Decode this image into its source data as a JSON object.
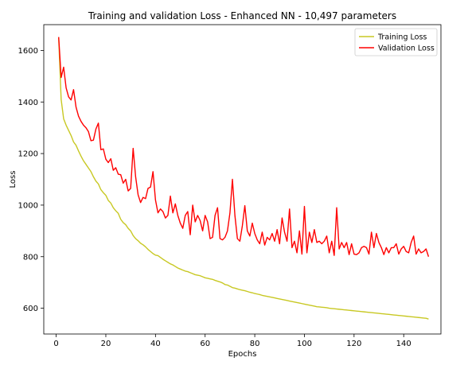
{
  "chart_data": {
    "type": "line",
    "title": "Training and validation Loss - Enhanced NN - 10,497 parameters",
    "xlabel": "Epochs",
    "ylabel": "Loss",
    "xlim": [
      -5,
      155
    ],
    "ylim": [
      500,
      1700
    ],
    "xticks": [
      0,
      20,
      40,
      60,
      80,
      100,
      120,
      140
    ],
    "yticks": [
      600,
      800,
      1000,
      1200,
      1400,
      1600
    ],
    "grid": false,
    "legend_position": "top-right",
    "series": [
      {
        "name": "Training Loss",
        "color": "#c8c823",
        "x": [
          1,
          2,
          3,
          4,
          5,
          6,
          7,
          8,
          9,
          10,
          11,
          12,
          13,
          14,
          15,
          16,
          17,
          18,
          19,
          20,
          21,
          22,
          23,
          24,
          25,
          26,
          27,
          28,
          29,
          30,
          31,
          32,
          33,
          34,
          35,
          36,
          37,
          38,
          39,
          40,
          41,
          42,
          43,
          44,
          45,
          46,
          47,
          48,
          49,
          50,
          51,
          52,
          53,
          54,
          55,
          56,
          57,
          58,
          59,
          60,
          61,
          62,
          63,
          64,
          65,
          66,
          67,
          68,
          69,
          70,
          71,
          72,
          73,
          74,
          75,
          76,
          77,
          78,
          79,
          80,
          81,
          82,
          83,
          84,
          85,
          86,
          87,
          88,
          89,
          90,
          91,
          92,
          93,
          94,
          95,
          96,
          97,
          98,
          99,
          100,
          101,
          102,
          103,
          104,
          105,
          106,
          107,
          108,
          109,
          110,
          111,
          112,
          113,
          114,
          115,
          116,
          117,
          118,
          119,
          120,
          121,
          122,
          123,
          124,
          125,
          126,
          127,
          128,
          129,
          130,
          131,
          132,
          133,
          134,
          135,
          136,
          137,
          138,
          139,
          140,
          141,
          142,
          143,
          144,
          145,
          146,
          147,
          148,
          149,
          150
        ],
        "values": [
          1650,
          1410,
          1335,
          1310,
          1290,
          1270,
          1245,
          1232,
          1210,
          1190,
          1172,
          1158,
          1144,
          1130,
          1110,
          1093,
          1082,
          1060,
          1048,
          1038,
          1018,
          1008,
          990,
          978,
          968,
          945,
          932,
          924,
          910,
          900,
          882,
          870,
          862,
          852,
          846,
          838,
          828,
          820,
          812,
          806,
          804,
          797,
          790,
          784,
          778,
          772,
          768,
          762,
          756,
          752,
          748,
          744,
          742,
          738,
          734,
          730,
          728,
          726,
          722,
          718,
          716,
          714,
          712,
          708,
          705,
          702,
          698,
          692,
          690,
          685,
          680,
          678,
          675,
          672,
          670,
          668,
          665,
          662,
          660,
          657,
          655,
          653,
          650,
          648,
          646,
          644,
          642,
          640,
          638,
          636,
          634,
          632,
          630,
          628,
          626,
          624,
          622,
          620,
          618,
          616,
          614,
          612,
          610,
          608,
          606,
          605,
          604,
          603,
          602,
          600,
          599,
          598,
          597,
          596,
          595,
          594,
          593,
          592,
          591,
          590,
          589,
          588,
          587,
          586,
          585,
          584,
          583,
          582,
          581,
          580,
          579,
          578,
          577,
          576,
          575,
          574,
          573,
          572,
          571,
          570,
          569,
          568,
          567,
          566,
          565,
          564,
          563,
          562,
          561,
          558
        ]
      },
      {
        "name": "Validation Loss",
        "color": "#ff0000",
        "x": [
          1,
          2,
          3,
          4,
          5,
          6,
          7,
          8,
          9,
          10,
          11,
          12,
          13,
          14,
          15,
          16,
          17,
          18,
          19,
          20,
          21,
          22,
          23,
          24,
          25,
          26,
          27,
          28,
          29,
          30,
          31,
          32,
          33,
          34,
          35,
          36,
          37,
          38,
          39,
          40,
          41,
          42,
          43,
          44,
          45,
          46,
          47,
          48,
          49,
          50,
          51,
          52,
          53,
          54,
          55,
          56,
          57,
          58,
          59,
          60,
          61,
          62,
          63,
          64,
          65,
          66,
          67,
          68,
          69,
          70,
          71,
          72,
          73,
          74,
          75,
          76,
          77,
          78,
          79,
          80,
          81,
          82,
          83,
          84,
          85,
          86,
          87,
          88,
          89,
          90,
          91,
          92,
          93,
          94,
          95,
          96,
          97,
          98,
          99,
          100,
          101,
          102,
          103,
          104,
          105,
          106,
          107,
          108,
          109,
          110,
          111,
          112,
          113,
          114,
          115,
          116,
          117,
          118,
          119,
          120,
          121,
          122,
          123,
          124,
          125,
          126,
          127,
          128,
          129,
          130,
          131,
          132,
          133,
          134,
          135,
          136,
          137,
          138,
          139,
          140,
          141,
          142,
          143,
          144,
          145,
          146,
          147,
          148,
          149,
          150
        ],
        "values": [
          1652,
          1495,
          1535,
          1455,
          1420,
          1408,
          1448,
          1380,
          1345,
          1325,
          1310,
          1300,
          1285,
          1250,
          1252,
          1295,
          1318,
          1215,
          1218,
          1178,
          1165,
          1180,
          1135,
          1145,
          1120,
          1118,
          1085,
          1100,
          1055,
          1065,
          1220,
          1110,
          1040,
          1010,
          1030,
          1025,
          1065,
          1070,
          1130,
          1020,
          970,
          985,
          975,
          950,
          960,
          1035,
          970,
          1005,
          960,
          930,
          910,
          960,
          975,
          885,
          1000,
          935,
          960,
          940,
          900,
          960,
          935,
          870,
          875,
          960,
          990,
          870,
          865,
          875,
          900,
          970,
          1100,
          960,
          870,
          860,
          920,
          998,
          900,
          880,
          930,
          890,
          865,
          850,
          895,
          845,
          875,
          865,
          890,
          860,
          905,
          850,
          950,
          895,
          860,
          985,
          835,
          860,
          815,
          900,
          810,
          995,
          815,
          895,
          855,
          905,
          855,
          860,
          850,
          860,
          880,
          815,
          860,
          805,
          990,
          830,
          855,
          835,
          855,
          808,
          850,
          810,
          808,
          815,
          835,
          840,
          835,
          810,
          895,
          835,
          890,
          855,
          835,
          808,
          835,
          815,
          835,
          835,
          850,
          810,
          830,
          840,
          820,
          815,
          855,
          880,
          810,
          830,
          815,
          820,
          830,
          800
        ]
      }
    ]
  }
}
